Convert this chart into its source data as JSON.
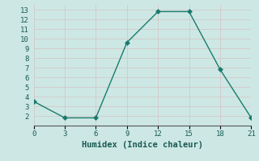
{
  "x": [
    0,
    3,
    6,
    9,
    12,
    15,
    18,
    21
  ],
  "y": [
    3.5,
    1.8,
    1.8,
    9.6,
    12.8,
    12.8,
    6.8,
    1.8
  ],
  "line_color": "#1a7a6e",
  "marker": "D",
  "marker_size": 3,
  "xlabel": "Humidex (Indice chaleur)",
  "xlim": [
    0,
    21
  ],
  "ylim": [
    1,
    13.5
  ],
  "xticks": [
    0,
    3,
    6,
    9,
    12,
    15,
    18,
    21
  ],
  "yticks": [
    2,
    3,
    4,
    5,
    6,
    7,
    8,
    9,
    10,
    11,
    12,
    13
  ],
  "background_color": "#cde8e4",
  "grid_color": "#b8d8d4",
  "tick_label_fontsize": 6.5,
  "xlabel_fontsize": 7.5,
  "font_family": "monospace"
}
